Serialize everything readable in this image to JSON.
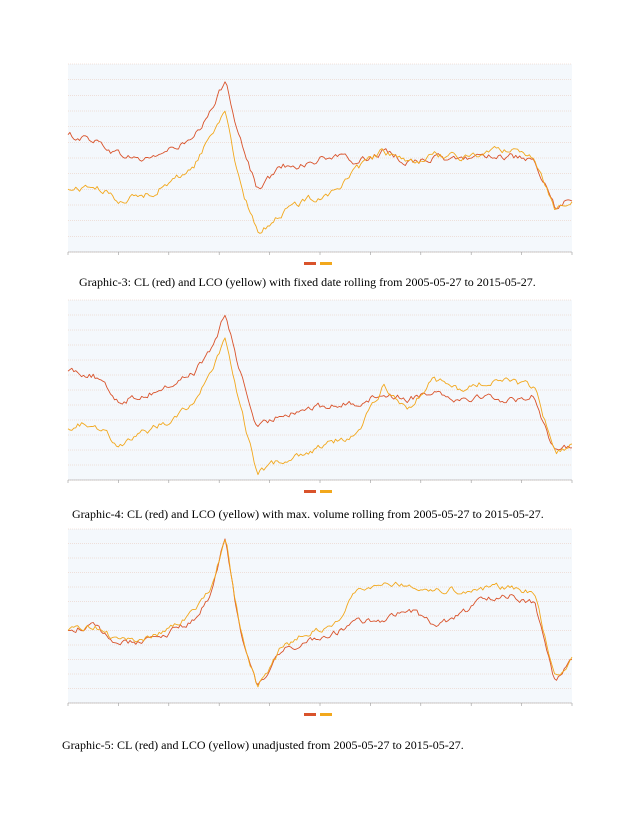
{
  "page": {
    "figures": [
      {
        "id": "graphic-3",
        "caption": "Graphic-3: CL (red) and LCO (yellow) with fixed date rolling from 2005-05-27 to 2015-05-27."
      },
      {
        "id": "graphic-4",
        "caption": "Graphic-4: CL (red) and  LCO (yellow) with max. volume rolling from 2005-05-27 to 2015-05-27."
      },
      {
        "id": "graphic-5",
        "caption": "Graphic-5: CL (red) and LCO (yellow) unadjusted from 2005-05-27 to 2015-05-27."
      }
    ]
  },
  "colors": {
    "cl": "#d9532b",
    "lco": "#f2a81d",
    "plot_bg": "#f4f8fc",
    "grid": "#e6b9a6"
  },
  "chart_data": [
    {
      "type": "line",
      "title": "",
      "xlabel": "",
      "ylabel": "",
      "x_range": [
        "2005-05-27",
        "2015-05-27"
      ],
      "ylim": [
        0,
        100
      ],
      "grid": true,
      "legend": "bottom-center",
      "x": [
        "2005-05-27",
        "2005-11-27",
        "2006-05-27",
        "2006-11-27",
        "2007-05-27",
        "2007-11-27",
        "2008-03-27",
        "2008-07-11",
        "2008-10-27",
        "2009-02-27",
        "2009-08-27",
        "2010-02-27",
        "2010-08-27",
        "2011-02-27",
        "2011-08-27",
        "2012-02-27",
        "2012-08-27",
        "2013-02-27",
        "2013-08-27",
        "2014-02-27",
        "2014-08-27",
        "2015-01-27",
        "2015-05-27"
      ],
      "series": [
        {
          "name": "CL",
          "values": [
            62,
            60,
            52,
            49,
            54,
            60,
            74,
            92,
            60,
            33,
            46,
            47,
            51,
            48,
            53,
            48,
            50,
            49,
            52,
            51,
            47,
            23,
            29
          ]
        },
        {
          "name": "LCO",
          "values": [
            33,
            35,
            28,
            30,
            36,
            46,
            62,
            76,
            35,
            10,
            21,
            28,
            32,
            44,
            54,
            46,
            52,
            50,
            53,
            55,
            51,
            23,
            29
          ]
        }
      ]
    },
    {
      "type": "line",
      "title": "",
      "xlabel": "",
      "ylabel": "",
      "x_range": [
        "2005-05-27",
        "2015-05-27"
      ],
      "ylim": [
        0,
        100
      ],
      "grid": true,
      "legend": "bottom-center",
      "x": [
        "2005-05-27",
        "2005-11-27",
        "2006-05-27",
        "2006-11-27",
        "2007-05-27",
        "2007-11-27",
        "2008-03-27",
        "2008-07-11",
        "2008-10-27",
        "2009-02-27",
        "2009-08-27",
        "2010-02-27",
        "2010-08-27",
        "2011-02-27",
        "2011-08-27",
        "2012-02-27",
        "2012-08-27",
        "2013-02-27",
        "2013-08-27",
        "2014-02-27",
        "2014-08-27",
        "2015-01-27",
        "2015-05-27"
      ],
      "series": [
        {
          "name": "CL",
          "values": [
            62,
            58,
            44,
            47,
            52,
            60,
            72,
            92,
            60,
            28,
            37,
            40,
            41,
            43,
            48,
            45,
            50,
            45,
            47,
            44,
            47,
            14,
            20
          ]
        },
        {
          "name": "LCO",
          "values": [
            30,
            32,
            20,
            26,
            33,
            44,
            58,
            80,
            40,
            4,
            11,
            16,
            21,
            26,
            52,
            40,
            56,
            50,
            54,
            55,
            51,
            14,
            20
          ]
        }
      ]
    },
    {
      "type": "line",
      "title": "",
      "xlabel": "",
      "ylabel": "",
      "x_range": [
        "2005-05-27",
        "2015-05-27"
      ],
      "ylim": [
        0,
        100
      ],
      "grid": true,
      "legend": "bottom-center",
      "x": [
        "2005-05-27",
        "2005-11-27",
        "2006-05-27",
        "2006-11-27",
        "2007-05-27",
        "2007-11-27",
        "2008-03-27",
        "2008-07-11",
        "2008-10-27",
        "2009-02-27",
        "2009-08-27",
        "2010-02-27",
        "2010-08-27",
        "2011-02-27",
        "2011-08-27",
        "2012-02-27",
        "2012-08-27",
        "2013-02-27",
        "2013-08-27",
        "2014-02-27",
        "2014-08-27",
        "2015-01-27",
        "2015-05-27"
      ],
      "series": [
        {
          "name": "CL",
          "values": [
            42,
            44,
            34,
            36,
            40,
            48,
            62,
            95,
            40,
            8,
            30,
            36,
            40,
            46,
            48,
            55,
            45,
            50,
            60,
            62,
            58,
            12,
            25
          ]
        },
        {
          "name": "LCO",
          "values": [
            42,
            45,
            35,
            37,
            42,
            52,
            66,
            95,
            42,
            10,
            32,
            40,
            44,
            66,
            70,
            68,
            66,
            65,
            66,
            67,
            64,
            14,
            27
          ]
        }
      ]
    }
  ]
}
